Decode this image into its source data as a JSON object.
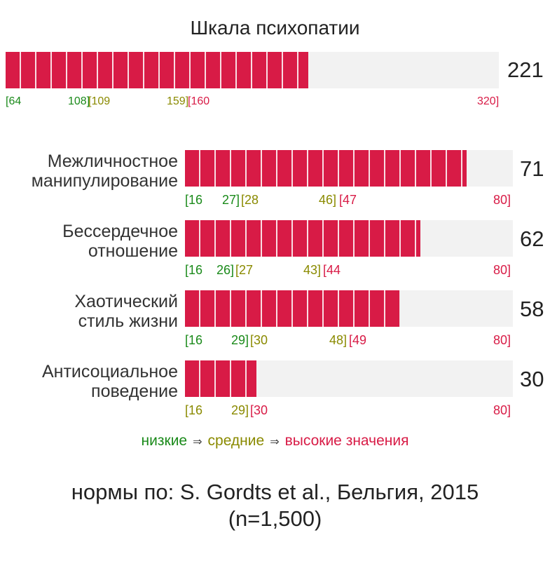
{
  "chart_data": {
    "type": "bar",
    "title": "Шкала психопатии",
    "total": {
      "value": 221,
      "min": 64,
      "max": 320,
      "ticks": [
        "[64",
        "108]",
        "[109",
        "159]",
        "[160",
        "320]"
      ]
    },
    "categories": [
      "Межличностное манипулирование",
      "Бессердечное отношение",
      "Хаотический стиль жизни",
      "Антисоциальное поведение"
    ],
    "values": [
      71,
      62,
      58,
      30
    ],
    "min": 16,
    "max": 80,
    "subscales": [
      {
        "label_lines": [
          "Межличностное",
          "манипулирование"
        ],
        "value": 71,
        "ticks": [
          "[16",
          "27]",
          "[28",
          "46]",
          "[47",
          "80]"
        ]
      },
      {
        "label_lines": [
          "Бессердечное",
          "отношение"
        ],
        "value": 62,
        "ticks": [
          "[16",
          "26]",
          "[27",
          "43]",
          "[44",
          "80]"
        ]
      },
      {
        "label_lines": [
          "Хаотический",
          "стиль жизни"
        ],
        "value": 58,
        "ticks": [
          "[16",
          "29]",
          "[30",
          "48]",
          "[49",
          "80]"
        ]
      },
      {
        "label_lines": [
          "Антисоциальное",
          "поведение"
        ],
        "value": 30,
        "ticks": [
          "[16",
          "29]",
          "[30",
          "80]"
        ]
      }
    ],
    "legend": {
      "low": "низкие",
      "mid": "средние",
      "high": "высокие значения",
      "arrow": "⇒"
    },
    "colors": {
      "bar": "#d81b46",
      "track": "#f2f2f2",
      "low": "#1a8a1a",
      "mid": "#8a8a00",
      "high": "#d81b46"
    }
  },
  "footer": {
    "line1": "нормы по: S. Gordts et al., Бельгия, 2015",
    "line2": "(n=1,500)"
  }
}
